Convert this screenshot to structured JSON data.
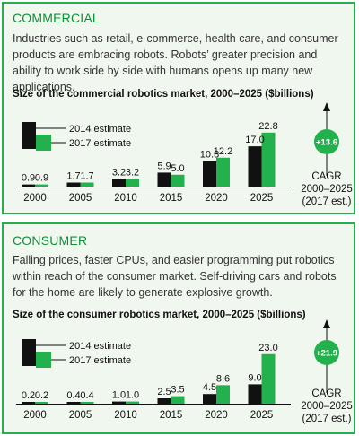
{
  "colors": {
    "estimate_2014": "#111111",
    "estimate_2017": "#22b14c",
    "accent": "#0e8f3a",
    "panel_bg": "#f0f7ee",
    "badge": "#22b14c"
  },
  "sections": [
    {
      "title": "COMMERCIAL",
      "description": "Industries such as retail, e-commerce, health care, and consumer products are embracing robots. Robots’ greater precision and ability to work side by side with humans opens up many new applications.",
      "chart_title": "Size of the commercial robotics market, 2000–2025 ($billions)",
      "legend": [
        "2014 estimate",
        "2017 estimate"
      ],
      "badge": "+13.6",
      "cagr_label": "CAGR",
      "cagr_range": "2000–2025",
      "cagr_note": "(2017 est.)"
    },
    {
      "title": "CONSUMER",
      "description": "Falling prices, faster CPUs, and easier programming put robotics within reach of the consumer market. Self-driving cars and robots for the home are likely to generate explosive growth.",
      "chart_title": "Size of the consumer robotics market, 2000–2025 ($billions)",
      "legend": [
        "2014 estimate",
        "2017 estimate"
      ],
      "badge": "+21.9",
      "cagr_label": "CAGR",
      "cagr_range": "2000–2025",
      "cagr_note": "(2017 est.)"
    }
  ],
  "chart_data": [
    {
      "type": "bar",
      "title": "Size of the commercial robotics market, 2000–2025 ($billions)",
      "categories": [
        "2000",
        "2005",
        "2010",
        "2015",
        "2020",
        "2025"
      ],
      "series": [
        {
          "name": "2014 estimate",
          "values": [
            0.9,
            1.7,
            3.2,
            5.9,
            10.8,
            17.0
          ]
        },
        {
          "name": "2017 estimate",
          "values": [
            0.9,
            1.7,
            3.2,
            5.0,
            12.2,
            22.8
          ]
        }
      ],
      "value_labels": [
        [
          "0.9",
          "1.7",
          "3.2",
          "5.9",
          "10.8",
          "17.0"
        ],
        [
          "0.9",
          "1.7",
          "3.2",
          "5.0",
          "12.2",
          "22.8"
        ]
      ],
      "ylim": [
        0,
        25
      ],
      "legend_position": "top-left",
      "grid": false
    },
    {
      "type": "bar",
      "title": "Size of the consumer robotics market, 2000–2025 ($billions)",
      "categories": [
        "2000",
        "2005",
        "2010",
        "2015",
        "2020",
        "2025"
      ],
      "series": [
        {
          "name": "2014 estimate",
          "values": [
            0.2,
            0.4,
            1.0,
            2.5,
            4.5,
            9.0
          ]
        },
        {
          "name": "2017 estimate",
          "values": [
            0.2,
            0.4,
            1.0,
            3.5,
            8.6,
            23.0
          ]
        }
      ],
      "value_labels": [
        [
          "0.2",
          "0.4",
          "1.0",
          "2.5",
          "4.5",
          "9.0"
        ],
        [
          "0.2",
          "0.4",
          "1.0",
          "3.5",
          "8.6",
          "23.0"
        ]
      ],
      "ylim": [
        0,
        25
      ],
      "legend_position": "top-left",
      "grid": false
    }
  ]
}
